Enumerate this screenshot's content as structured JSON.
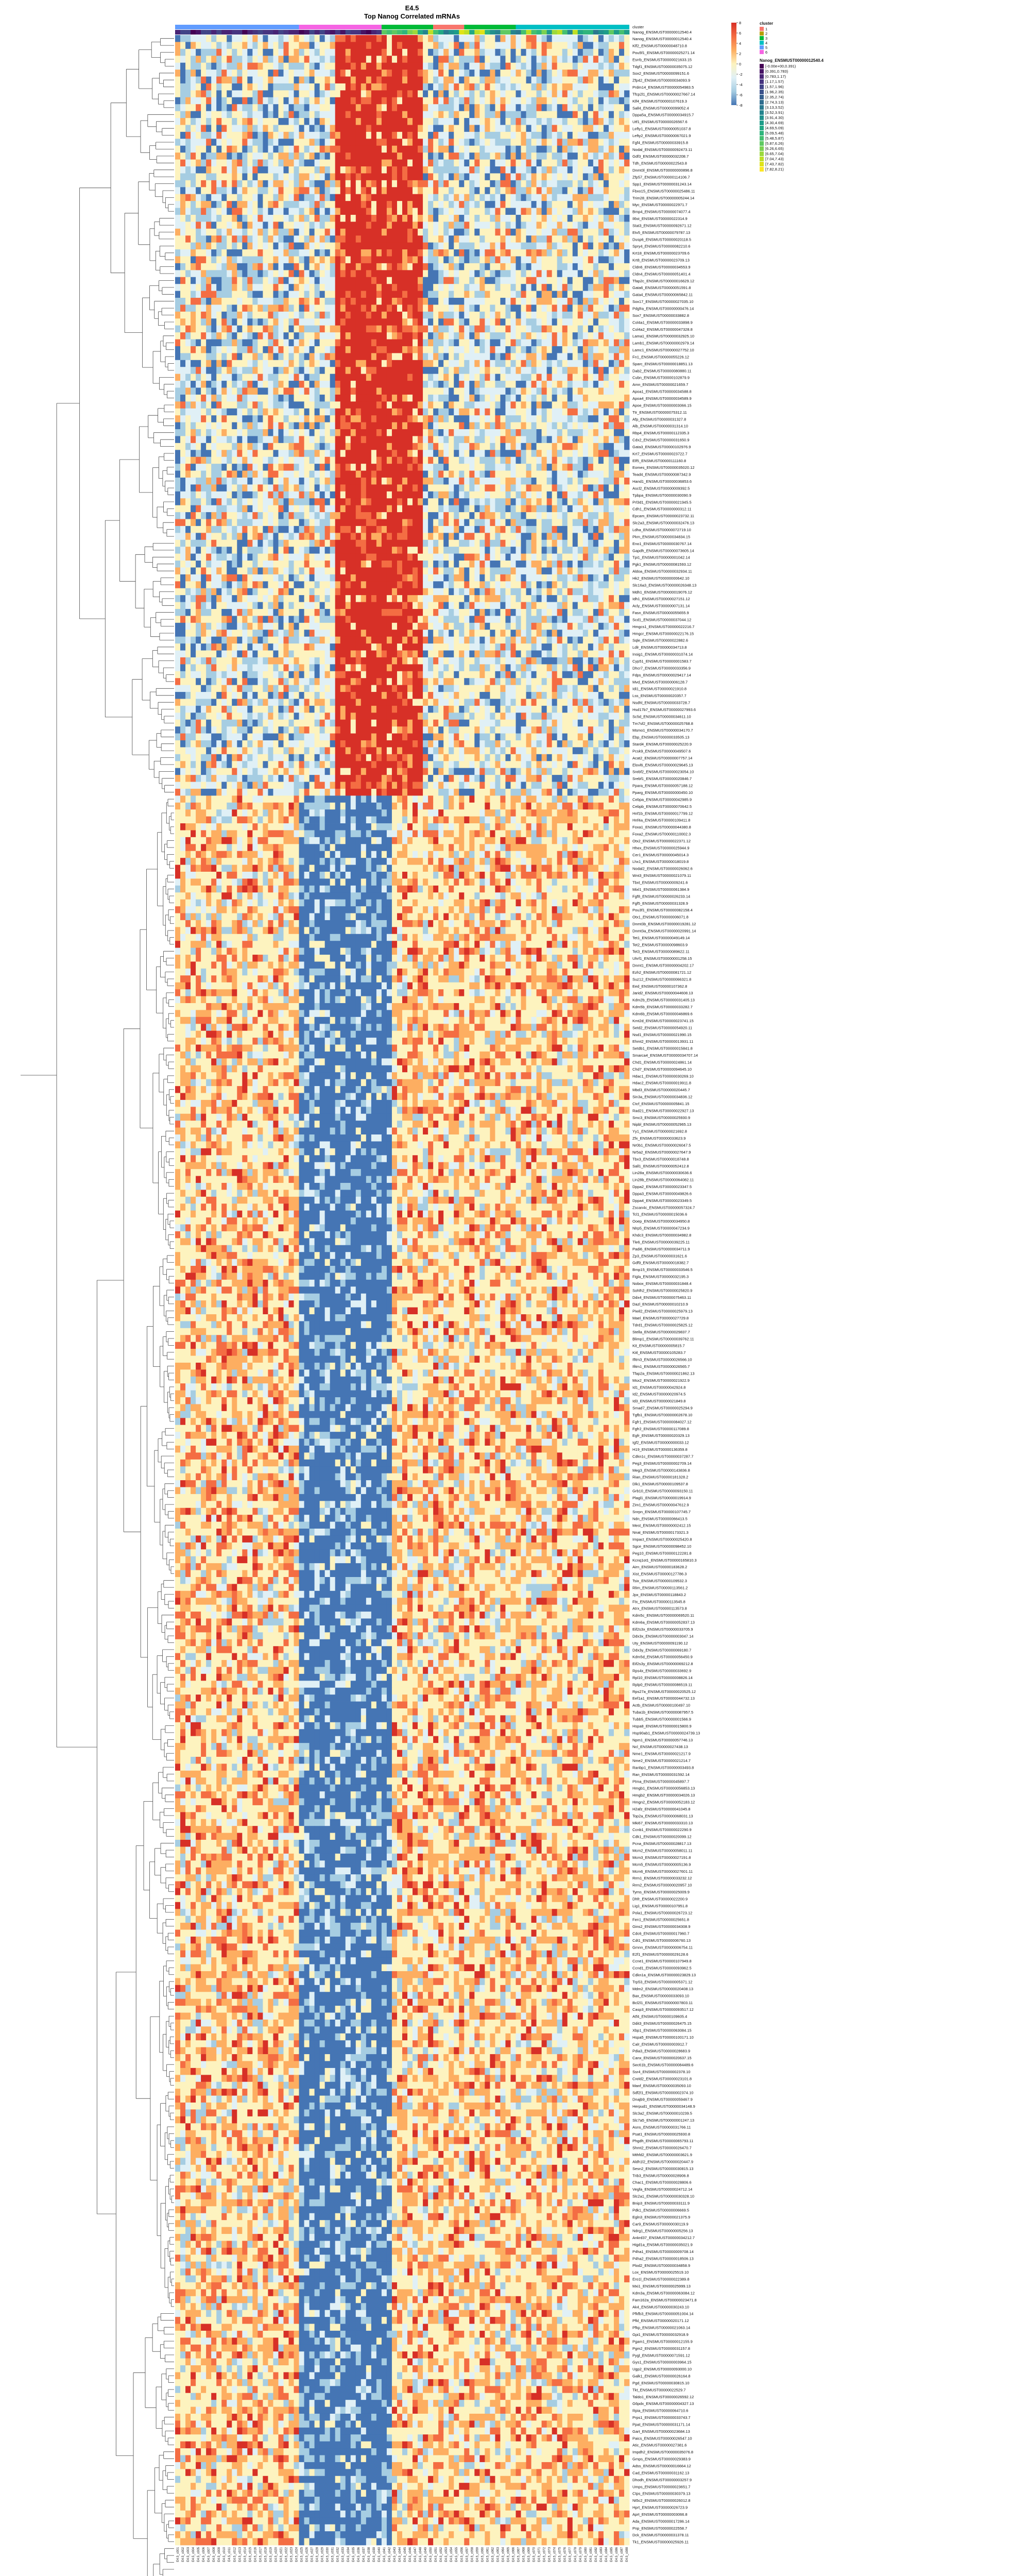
{
  "colors": {
    "blue": "#4575b4",
    "lightblue": "#a6cde2",
    "paleblue": "#e0f0f6",
    "paleyellow": "#fdf3bf",
    "orange": "#fdae61",
    "deeporange": "#f46d43",
    "red": "#d73027",
    "lineColor": "#444444"
  },
  "chart_data": {
    "type": "heatmap",
    "title": "E4.5",
    "subtitle": "Top Nanog Correlated mRNAs",
    "annotation_rows": [
      "cluster",
      "Nanog_ENSMUST00000012540.4"
    ],
    "cluster_legend": {
      "title": "cluster",
      "items": [
        {
          "label": "1",
          "color": "#f8766d"
        },
        {
          "label": "2",
          "color": "#b79f00"
        },
        {
          "label": "3",
          "color": "#00ba38"
        },
        {
          "label": "4",
          "color": "#00bfc4"
        },
        {
          "label": "5",
          "color": "#619cff"
        },
        {
          "label": "6",
          "color": "#f564e3"
        }
      ]
    },
    "nanog_legend": {
      "title": "Nanog_ENSMUST00000012540.4",
      "items": [
        {
          "label": "[-0.00e+00,0.391)",
          "color": "#440154"
        },
        {
          "label": "[0.391,0.783)",
          "color": "#471365"
        },
        {
          "label": "[0.783,1.17)",
          "color": "#482475"
        },
        {
          "label": "[1.17,1.57)",
          "color": "#463480"
        },
        {
          "label": "[1.57,1.96)",
          "color": "#414487"
        },
        {
          "label": "[1.96,2.35)",
          "color": "#3b528b"
        },
        {
          "label": "[2.35,2.74)",
          "color": "#355f8d"
        },
        {
          "label": "[2.74,3.13)",
          "color": "#2f6c8e"
        },
        {
          "label": "[3.13,3.52)",
          "color": "#2a788e"
        },
        {
          "label": "[3.52,3.91)",
          "color": "#25848e"
        },
        {
          "label": "[3.91,4.30)",
          "color": "#21918c"
        },
        {
          "label": "[4.30,4.69)",
          "color": "#1e9c89"
        },
        {
          "label": "[4.69,5.09)",
          "color": "#22a884"
        },
        {
          "label": "[5.09,5.48)",
          "color": "#2fb47c"
        },
        {
          "label": "[5.48,5.87)",
          "color": "#44bf70"
        },
        {
          "label": "[5.87,6.26)",
          "color": "#5ec962"
        },
        {
          "label": "[6.26,6.65)",
          "color": "#7ad151"
        },
        {
          "label": "[6.65,7.04)",
          "color": "#9bd93c"
        },
        {
          "label": "[7.04,7.43)",
          "color": "#bddf26"
        },
        {
          "label": "[7.43,7.82)",
          "color": "#dfe318"
        },
        {
          "label": "[7.82,8.21)",
          "color": "#fde725"
        }
      ]
    },
    "scale_legend": {
      "ticks": [
        "8",
        "6",
        "4",
        "2",
        "0",
        "-2",
        "-4",
        "-6",
        "-8"
      ]
    },
    "row_labels": [
      "Nanog_ENSMUST00000012540.4",
      "Klf2_ENSMUST00000048710.8",
      "Pou5f1_ENSMUST00000025271.14",
      "Esrrb_ENSMUST00000021633.15",
      "Tdgf1_ENSMUST00000035075.12",
      "Sox2_ENSMUST00000099151.6",
      "Zfp42_ENSMUST00000034093.9",
      "Prdm14_ENSMUST00000054983.5",
      "Tfcp2l1_ENSMUST00000027667.14",
      "Klf4_ENSMUST00000107619.3",
      "Sall4_ENSMUST00000099052.4",
      "Dppa5a_ENSMUST00000034915.7",
      "Utf1_ENSMUST00000026567.6",
      "Lefty1_ENSMUST00000051037.8",
      "Lefty2_ENSMUST00000067021.9",
      "Fgf4_ENSMUST00000033915.8",
      "Nodal_ENSMUST00000092473.11",
      "Gdf3_ENSMUST00000032208.7",
      "Tdh_ENSMUST00000022543.8",
      "Dnmt3l_ENSMUST00000000896.8",
      "Zfp57_ENSMUST00000114106.7",
      "Spp1_ENSMUST00000031243.14",
      "Fbxo15_ENSMUST00000025486.11",
      "Trim28_ENSMUST00000005244.14",
      "Myc_ENSMUST00000022971.7",
      "Bmp4_ENSMUST00000074077.4",
      "Il6st_ENSMUST00000022314.9",
      "Stat3_ENSMUST00000092671.12",
      "Etv5_ENSMUST00000079787.13",
      "Dusp6_ENSMUST00000020118.5",
      "Spry4_ENSMUST00000082210.6",
      "Krt18_ENSMUST00000023709.6",
      "Krt8_ENSMUST00000023709.13",
      "Cldn6_ENSMUST00000034553.9",
      "Cldn4_ENSMUST00000051401.4",
      "Tfap2c_ENSMUST00000016629.12",
      "Gata6_ENSMUST00000051591.8",
      "Gata4_ENSMUST00000065842.11",
      "Sox17_ENSMUST00000027035.10",
      "Pdgfra_ENSMUST00000000476.14",
      "Sox7_ENSMUST00000033882.8",
      "Col4a1_ENSMUST00000033898.9",
      "Col4a2_ENSMUST00000047328.8",
      "Lama1_ENSMUST00000032925.10",
      "Lamb1_ENSMUST00000002979.14",
      "Lamc1_ENSMUST00000027752.10",
      "Fn1_ENSMUST00000055226.12",
      "Sparc_ENSMUST00000018851.13",
      "Dab2_ENSMUST00000080880.11",
      "Cubn_ENSMUST00000102879.9",
      "Amn_ENSMUST00000021659.7",
      "Apoa1_ENSMUST00000034588.8",
      "Apoa4_ENSMUST00000034589.9",
      "Apoe_ENSMUST00000003066.15",
      "Ttr_ENSMUST00000075312.11",
      "Afp_ENSMUST00000031327.8",
      "Alb_ENSMUST00000031314.10",
      "Rbp4_ENSMUST00000112335.3",
      "Cdx2_ENSMUST00000031650.9",
      "Gata3_ENSMUST00000102976.9",
      "Krt7_ENSMUST00000023722.7",
      "Elf5_ENSMUST00000111160.8",
      "Eomes_ENSMUST00000035020.12",
      "Tead4_ENSMUST00000087342.9",
      "Hand1_ENSMUST00000036853.6",
      "Ascl2_ENSMUST00000009392.5",
      "Tpbpa_ENSMUST00000030090.9",
      "Prl3d1_ENSMUST00000021945.5",
      "Cdh1_ENSMUST00000000312.11",
      "Epcam_ENSMUST00000023732.11",
      "Slc2a3_ENSMUST00000032476.13",
      "Ldha_ENSMUST00000072719.10",
      "Pkm_ENSMUST00000034834.15",
      "Eno1_ENSMUST00000030767.14",
      "Gapdh_ENSMUST00000073605.14",
      "Tpi1_ENSMUST00000001042.14",
      "Pgk1_ENSMUST00000081593.12",
      "Aldoa_ENSMUST00000032934.11",
      "Hk2_ENSMUST00000000642.10",
      "Slc16a3_ENSMUST00000026348.13",
      "Mdh1_ENSMUST00000019076.12",
      "Idh1_ENSMUST00000027151.12",
      "Acly_ENSMUST00000007131.14",
      "Fasn_ENSMUST00000055655.9",
      "Scd1_ENSMUST00000037044.12",
      "Hmgcs1_ENSMUST00000022216.7",
      "Hmgcr_ENSMUST00000022176.15",
      "Sqle_ENSMUST00000022882.6",
      "Ldlr_ENSMUST00000034713.8",
      "Insig1_ENSMUST00000031074.14",
      "Cyp51_ENSMUST00000001583.7",
      "Dhcr7_ENSMUST00000033356.9",
      "Fdps_ENSMUST00000029417.14",
      "Mvd_ENSMUST00000006128.7",
      "Idi1_ENSMUST00000021910.8",
      "Lss_ENSMUST00000020357.7",
      "Nsdhl_ENSMUST00000033728.7",
      "Hsd17b7_ENSMUST00000027993.6",
      "Sc5d_ENSMUST00000034611.10",
      "Tm7sf2_ENSMUST00000025768.8",
      "Msmo1_ENSMUST00000034170.7",
      "Ebp_ENSMUST00000033505.13",
      "Stard4_ENSMUST00000025220.9",
      "Pcsk9_ENSMUST00000049507.6",
      "Acat2_ENSMUST00000007757.14",
      "Elovl6_ENSMUST00000029645.13",
      "Srebf2_ENSMUST00000023054.10",
      "Srebf1_ENSMUST00000020846.7",
      "Ppara_ENSMUST00000057188.12",
      "Pparg_ENSMUST00000000450.10",
      "Cebpa_ENSMUST00000042985.9",
      "Cebpb_ENSMUST00000070642.5",
      "Hnf1b_ENSMUST00000017799.12",
      "Hnf4a_ENSMUST00000109411.8",
      "Foxa1_ENSMUST00000044380.8",
      "Foxa2_ENSMUST00000110002.3",
      "Otx2_ENSMUST00000022371.12",
      "Hhex_ENSMUST00000025944.9",
      "Cer1_ENSMUST00000045014.3",
      "Lhx1_ENSMUST00000018019.8",
      "Nodal2_ENSMUST00000026062.6",
      "Wnt3_ENSMUST00000021079.11",
      "Tbxt_ENSMUST00000009241.6",
      "Mixl1_ENSMUST00000061384.9",
      "Fgf8_ENSMUST00000026233.14",
      "Fgf5_ENSMUST00000031328.9",
      "Pou3f1_ENSMUST00000082158.4",
      "Otx1_ENSMUST00000006071.8",
      "Dnmt3b_ENSMUST00000019281.12",
      "Dnmt3a_ENSMUST00000020991.14",
      "Tet1_ENSMUST00000049149.14",
      "Tet2_ENSMUST00000098603.9",
      "Tet3_ENSMUST00000089622.11",
      "Uhrf1_ENSMUST00000001258.15",
      "Dnmt1_ENSMUST00000004202.17",
      "Ezh2_ENSMUST00000081721.12",
      "Suz12_ENSMUST00000066321.8",
      "Eed_ENSMUST00000107362.8",
      "Jarid2_ENSMUST00000044608.13",
      "Kdm2b_ENSMUST00000031405.13",
      "Kdm5b_ENSMUST00000033282.7",
      "Kdm6b_ENSMUST00000046869.6",
      "Kmt2d_ENSMUST00000023741.15",
      "Setd2_ENSMUST00000054920.11",
      "Nsd1_ENSMUST00000021990.15",
      "Ehmt2_ENSMUST00000013931.11",
      "Setdb1_ENSMUST00000015841.8",
      "Smarca4_ENSMUST00000034707.14",
      "Chd1_ENSMUST00000024861.14",
      "Chd7_ENSMUST00000094645.10",
      "Hdac1_ENSMUST00000030269.10",
      "Hdac2_ENSMUST00000019911.8",
      "Mbd3_ENSMUST00000020445.7",
      "Sin3a_ENSMUST00000034836.12",
      "Ctcf_ENSMUST00000005841.15",
      "Rad21_ENSMUST00000022927.13",
      "Smc3_ENSMUST00000025930.9",
      "Nipbl_ENSMUST00000052965.13",
      "Yy1_ENSMUST00000021692.8",
      "Zfx_ENSMUST00000033623.9",
      "Nr0b1_ENSMUST00000026047.5",
      "Nr5a2_ENSMUST00000027647.9",
      "Tbx3_ENSMUST00000018748.8",
      "Sall1_ENSMUST00000052412.8",
      "Lin28a_ENSMUST00000030636.6",
      "Lin28b_ENSMUST00000064082.11",
      "Dppa2_ENSMUST00000023347.5",
      "Dppa3_ENSMUST00000049826.6",
      "Dppa4_ENSMUST00000023349.5",
      "Zscan4c_ENSMUST00000057324.7",
      "Tcl1_ENSMUST00000015036.6",
      "Ooep_ENSMUST00000034950.8",
      "Nlrp5_ENSMUST00000047234.9",
      "Khdc3_ENSMUST00000034982.8",
      "Tle6_ENSMUST00000039225.11",
      "Padi6_ENSMUST00000034711.9",
      "Zp3_ENSMUST00000031621.6",
      "Gdf9_ENSMUST00000018382.7",
      "Bmp15_ENSMUST00000033546.5",
      "Figla_ENSMUST00000032195.3",
      "Nobox_ENSMUST00000031848.4",
      "Sohlh2_ENSMUST00000025820.9",
      "Ddx4_ENSMUST00000075463.11",
      "Dazl_ENSMUST00000010210.9",
      "Piwil2_ENSMUST00000025979.13",
      "Mael_ENSMUST00000027729.8",
      "Tdrd1_ENSMUST00000025825.12",
      "Stella_ENSMUST00000029837.7",
      "Blimp1_ENSMUST00000039762.11",
      "Kit_ENSMUST00000005815.7",
      "Kitl_ENSMUST00000105283.7",
      "Ifitm3_ENSMUST00000026566.10",
      "Ifitm1_ENSMUST00000026565.7",
      "Tfap2a_ENSMUST00000021862.13",
      "Msx2_ENSMUST00000021922.9",
      "Id1_ENSMUST00000042924.8",
      "Id2_ENSMUST00000020974.5",
      "Id3_ENSMUST00000021849.8",
      "Smad7_ENSMUST00000025294.9",
      "Tgfb1_ENSMUST00000002678.10",
      "Fgfr1_ENSMUST00000084027.12",
      "Fgfr2_ENSMUST00000117089.8",
      "Egfr_ENSMUST00000020329.13",
      "Igf2_ENSMUST00000000033.12",
      "H19_ENSMUST00000136359.8",
      "Cdkn1c_ENSMUST00000037287.7",
      "Peg3_ENSMUST00000002709.14",
      "Meg3_ENSMUST00000143836.8",
      "Rian_ENSMUST00000181328.2",
      "Dlk1_ENSMUST00000109537.8",
      "Grb10_ENSMUST00000093150.11",
      "Plagl1_ENSMUST00000019914.9",
      "Zim1_ENSMUST00000047612.9",
      "Snrpn_ENSMUST00000107745.7",
      "Ndn_ENSMUST00000066413.5",
      "Mest_ENSMUST00000002412.15",
      "Nnat_ENSMUST00000173321.3",
      "Impact_ENSMUST00000025420.8",
      "Sgce_ENSMUST00000098452.10",
      "Peg10_ENSMUST00000122281.8",
      "Kcnq1ot1_ENSMUST00000165810.3",
      "Airn_ENSMUST00000183628.2",
      "Xist_ENSMUST00000127786.3",
      "Tsix_ENSMUST00000109532.3",
      "Rlim_ENSMUST00000113561.2",
      "Jpx_ENSMUST00000118843.2",
      "Ftx_ENSMUST00000113545.8",
      "Atrx_ENSMUST00000113573.8",
      "Kdm5c_ENSMUST00000069520.11",
      "Kdm6a_ENSMUST00000052837.13",
      "Eif2s3x_ENSMUST00000033705.9",
      "Ddx3x_ENSMUST00000003047.14",
      "Uty_ENSMUST00000091190.12",
      "Ddx3y_ENSMUST00000069180.7",
      "Kdm5d_ENSMUST00000056450.9",
      "Eif2s3y_ENSMUST00000069212.8",
      "Rps4x_ENSMUST00000033692.9",
      "Rpl10_ENSMUST00000008826.14",
      "Rplp0_ENSMUST00000086519.11",
      "Rps27a_ENSMUST00000020525.12",
      "Eef1a1_ENSMUST00000044732.13",
      "Actb_ENSMUST00000100497.10",
      "Tuba1b_ENSMUST00000087957.5",
      "Tubb5_ENSMUST00000001566.9",
      "Hspa8_ENSMUST00000015800.9",
      "Hsp90ab1_ENSMUST00000024739.13",
      "Npm1_ENSMUST00000057746.13",
      "Ncl_ENSMUST00000027438.13",
      "Nme1_ENSMUST00000021217.9",
      "Nme2_ENSMUST00000021214.7",
      "Ranbp1_ENSMUST00000003493.8",
      "Ran_ENSMUST00000031592.14",
      "Ptma_ENSMUST00000045897.7",
      "Hmgb1_ENSMUST00000056853.13",
      "Hmgb2_ENSMUST00000034026.13",
      "Hmgn2_ENSMUST00000052183.12",
      "H2afz_ENSMUST00000041045.8",
      "Top2a_ENSMUST00000068031.13",
      "Mki67_ENSMUST00000033310.13",
      "Ccnb1_ENSMUST00000022290.9",
      "Cdk1_ENSMUST00000020099.12",
      "Pcna_ENSMUST00000028817.13",
      "Mcm2_ENSMUST00000058011.11",
      "Mcm3_ENSMUST00000027191.8",
      "Mcm5_ENSMUST00000005136.9",
      "Mcm6_ENSMUST00000027601.11",
      "Rrm1_ENSMUST00000033232.12",
      "Rrm2_ENSMUST00000020957.10",
      "Tyms_ENSMUST00000025009.9",
      "Dhfr_ENSMUST00000022200.9",
      "Lig1_ENSMUST00000107951.8",
      "Pola1_ENSMUST00000026723.12",
      "Fen1_ENSMUST00000025651.8",
      "Gins2_ENSMUST00000034308.9",
      "Cdc6_ENSMUST00000017960.7",
      "Cdt1_ENSMUST00000006760.13",
      "Gmnn_ENSMUST00000006754.11",
      "E2f1_ENSMUST00000029128.6",
      "Ccne1_ENSMUST00000107949.8",
      "Ccnd1_ENSMUST00000093962.5",
      "Cdkn1a_ENSMUST00000023829.13",
      "Trp53_ENSMUST00000005371.12",
      "Mdm2_ENSMUST00000020408.13",
      "Bax_ENSMUST00000033093.10",
      "Bcl2l1_ENSMUST00000007803.11",
      "Casp3_ENSMUST00000093517.12",
      "Atf4_ENSMUST00000109605.4",
      "Ddit3_ENSMUST00000026475.15",
      "Xbp1_ENSMUST00000063084.15",
      "Hspa5_ENSMUST00000100171.10",
      "Calr_ENSMUST00000003912.7",
      "Pdia3_ENSMUST00000028683.9",
      "Canx_ENSMUST00000020637.15",
      "Sec61b_ENSMUST00000084489.6",
      "Ssr4_ENSMUST00000002378.10",
      "Creld2_ENSMUST00000023101.8",
      "Manf_ENSMUST00000035093.10",
      "Sdf2l1_ENSMUST00000002374.10",
      "Dnajb9_ENSMUST00000059467.9",
      "Herpud1_ENSMUST00000034148.9",
      "Slc3a2_ENSMUST00000010239.5",
      "Slc7a5_ENSMUST00000001247.13",
      "Asns_ENSMUST00000031766.11",
      "Psat1_ENSMUST00000025930.8",
      "Phgdh_ENSMUST00000065793.11",
      "Shmt2_ENSMUST00000026470.7",
      "Mthfd2_ENSMUST00000003621.9",
      "Aldh1l2_ENSMUST00000020447.9",
      "Sesn2_ENSMUST00000030815.13",
      "Trib3_ENSMUST00000028906.8",
      "Chac1_ENSMUST00000028806.6",
      "Vegfa_ENSMUST00000024712.14",
      "Slc2a1_ENSMUST00000030328.10",
      "Bnip3_ENSMUST00000033111.9",
      "Pdk1_ENSMUST00000006669.5",
      "Egln3_ENSMUST00000021375.9",
      "Car9_ENSMUST00000030119.9",
      "Ndrg1_ENSMUST00000005256.13",
      "Ankrd37_ENSMUST00000034212.7",
      "Higd1a_ENSMUST00000035021.9",
      "P4ha1_ENSMUST00000009708.14",
      "P4ha2_ENSMUST00000018506.13",
      "Plod2_ENSMUST00000034858.9",
      "Lox_ENSMUST00000025519.10",
      "Ero1l_ENSMUST00000022389.8",
      "Mxi1_ENSMUST00000025999.13",
      "Kdm3a_ENSMUST00000063084.12",
      "Fam162a_ENSMUST00000023471.8",
      "Ak4_ENSMUST00000030243.10",
      "Pfkfb3_ENSMUST00000051004.14",
      "Pfkl_ENSMUST00000020171.12",
      "Pfkp_ENSMUST00000021063.14",
      "Gpi1_ENSMUST00000032918.9",
      "Pgam1_ENSMUST00000012155.9",
      "Pgm2_ENSMUST00000031157.8",
      "Pygl_ENSMUST00000071591.12",
      "Gys1_ENSMUST00000003964.15",
      "Ugp2_ENSMUST00000093000.10",
      "Galk1_ENSMUST00000026164.8",
      "Pgd_ENSMUST00000030815.10",
      "Tkt_ENSMUST00000022529.7",
      "Taldo1_ENSMUST00000026592.12",
      "G6pdx_ENSMUST00000004327.13",
      "Rpia_ENSMUST00000064710.6",
      "Prps1_ENSMUST00000033743.7",
      "Ppat_ENSMUST00000031171.14",
      "Gart_ENSMUST00000023684.13",
      "Paics_ENSMUST00000026547.10",
      "Atic_ENSMUST00000027381.6",
      "Impdh2_ENSMUST00000035076.8",
      "Gmps_ENSMUST00000029383.9",
      "Adss_ENSMUST00000016664.12",
      "Cad_ENSMUST00000031162.13",
      "Dhodh_ENSMUST00000003257.9",
      "Umps_ENSMUST00000023651.7",
      "Ctps_ENSMUST00000030379.13",
      "Nt5c2_ENSMUST00000026012.8",
      "Hprt_ENSMUST00000026723.9",
      "Aprt_ENSMUST00000003066.8",
      "Ada_ENSMUST00000017286.14",
      "Pnp_ENSMUST00000022558.7",
      "Dck_ENSMUST00000031378.11",
      "Tk1_ENSMUST00000025926.11"
    ],
    "col_labels": [
      "E4.5_c001",
      "E4.5_c002",
      "E4.5_c003",
      "E4.5_c004",
      "E4.5_c005",
      "E4.5_c006",
      "E4.5_c007",
      "E4.5_c008",
      "E4.5_c009",
      "E4.5_c010",
      "E4.5_c011",
      "E4.5_c012",
      "E4.5_c013",
      "E4.5_c014",
      "E4.5_c015",
      "E4.5_c016",
      "E4.5_c017",
      "E4.5_c018",
      "E4.5_c019",
      "E4.5_c020",
      "E4.5_c021",
      "E4.5_c022",
      "E4.5_c023",
      "E4.5_c024",
      "E4.5_c025",
      "E4.5_c026",
      "E4.5_c027",
      "E4.5_c028",
      "E4.5_c029",
      "E4.5_c030",
      "E4.5_c031",
      "E4.5_c032",
      "E4.5_c033",
      "E4.5_c034",
      "E4.5_c035",
      "E4.5_c036",
      "E4.5_c037",
      "E4.5_c038",
      "E4.5_c039",
      "E4.5_c040",
      "E4.5_c041",
      "E4.5_c042",
      "E4.5_c043",
      "E4.5_c044",
      "E4.5_c045",
      "E4.5_c046",
      "E4.5_c047",
      "E4.5_c048",
      "E4.5_c049",
      "E4.5_c050",
      "E4.5_c051",
      "E4.5_c052",
      "E4.5_c053",
      "E4.5_c054",
      "E4.5_c055",
      "E4.5_c056",
      "E4.5_c057",
      "E4.5_c058",
      "E4.5_c059",
      "E4.5_c060",
      "E4.5_c061",
      "E4.5_c062",
      "E4.5_c063",
      "E4.5_c064",
      "E4.5_c065",
      "E4.5_c066",
      "E4.5_c067",
      "E4.5_c068",
      "E4.5_c069",
      "E4.5_c070",
      "E4.5_c071",
      "E4.5_c072",
      "E4.5_c073",
      "E4.5_c074",
      "E4.5_c075",
      "E4.5_c076",
      "E4.5_c077",
      "E4.5_c078",
      "E4.5_c079",
      "E4.5_c080",
      "E4.5_c081",
      "E4.5_c082",
      "E4.5_c083",
      "E4.5_c084",
      "E4.5_c085",
      "E4.5_c086",
      "E4.5_c087",
      "E4.5_c088"
    ],
    "cluster_blocks": [
      {
        "cluster": "5",
        "start": 0,
        "end": 24
      },
      {
        "cluster": "6",
        "start": 24,
        "end": 40
      },
      {
        "cluster": "3",
        "start": 40,
        "end": 50
      },
      {
        "cluster": "1",
        "start": 50,
        "end": 56
      },
      {
        "cluster": "3",
        "start": 56,
        "end": 66
      },
      {
        "cluster": "4",
        "start": 66,
        "end": 88
      }
    ],
    "row_groups": [
      {
        "name": "upper",
        "start": 0,
        "end": 110,
        "hot_cols": [
          31,
          48
        ],
        "cold_bias": true
      },
      {
        "name": "lower",
        "start": 110,
        "end": 376,
        "hot_cols": [
          24,
          42
        ],
        "cold_bias": false
      }
    ],
    "value_range": [
      -8,
      8
    ]
  }
}
